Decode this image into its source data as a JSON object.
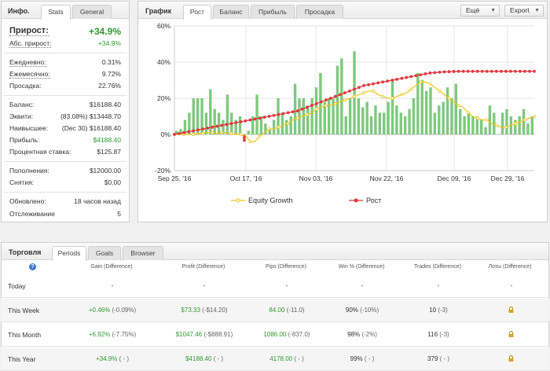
{
  "info": {
    "title": "Инфо.",
    "tabs": [
      "Stats",
      "General"
    ],
    "gain": {
      "label": "Прирост:",
      "value": "+34.9%"
    },
    "abs_gain": {
      "label": "Абс. прирост:",
      "value": "+34.9%"
    },
    "daily": {
      "label": "Ежедневно:",
      "value": "0.31%"
    },
    "monthly": {
      "label": "Ежемесячно:",
      "value": "9.72%"
    },
    "drawdown": {
      "label": "Просадка:",
      "value": "22.76%"
    },
    "balance": {
      "label": "Баланс:",
      "value": "$16188.40"
    },
    "equity": {
      "label": "Эквити:",
      "value": "(83.08%) $13448.70"
    },
    "highest": {
      "label": "Наивысшее:",
      "value": "(Dec 30) $16188.40"
    },
    "profit": {
      "label": "Прибыль:",
      "value": "$4188.40"
    },
    "interest": {
      "label": "Процентная ставка:",
      "value": "$125.87"
    },
    "deposits": {
      "label": "Пополнения:",
      "value": "$12000.00"
    },
    "withdrawals": {
      "label": "Снятия:",
      "value": "$0.00"
    },
    "updated": {
      "label": "Обновлено:",
      "value": "18 часов назад"
    },
    "tracking": {
      "label": "Отслеживание",
      "value": "5"
    }
  },
  "chart_panel": {
    "title": "График",
    "tabs": [
      "Рост",
      "Баланс",
      "Прибыль",
      "Просадка"
    ],
    "more_label": "Ещё",
    "export_label": "Export"
  },
  "chart_data": {
    "type": "line",
    "x_ticks": [
      "Sep 25, '16",
      "Oct 17, '16",
      "Nov 03, '16",
      "Nov 22, '16",
      "Dec 09, '16",
      "Dec 29, '16"
    ],
    "y_ticks": [
      "60%",
      "40%",
      "20%",
      "0%",
      "-20%"
    ],
    "ylim": [
      -20,
      60
    ],
    "grid": true,
    "legend_position": "bottom",
    "series": [
      {
        "name": "Equity Growth",
        "color": "#f0c419",
        "values": [
          0,
          0,
          0,
          0,
          0,
          0.5,
          0.5,
          1,
          1,
          0.5,
          1,
          1,
          0.5,
          0,
          0,
          -0.5,
          -4,
          -4,
          -1,
          1,
          3,
          3,
          4,
          5,
          6,
          8,
          9,
          10,
          11,
          12,
          14,
          15,
          16,
          16,
          17,
          18,
          19,
          20,
          21,
          22,
          23,
          24,
          24,
          22,
          21,
          20,
          20,
          21,
          22,
          23,
          25,
          27,
          29,
          29,
          28,
          26,
          24,
          22,
          20,
          18,
          16,
          15,
          12,
          10,
          9,
          8,
          8,
          6,
          5,
          4,
          4,
          5,
          6,
          7,
          8,
          9,
          10
        ]
      },
      {
        "name": "Рост",
        "color": "#e0393e",
        "values": [
          0,
          0.5,
          1,
          1.5,
          2,
          2.5,
          3,
          3.5,
          4,
          4.5,
          5,
          5.5,
          6,
          6.5,
          7,
          7.5,
          8,
          8.5,
          9,
          9.5,
          10,
          10.5,
          11,
          11.5,
          12,
          12.5,
          13,
          14,
          15,
          16,
          17,
          18,
          19,
          20,
          21,
          22,
          23,
          24,
          25,
          26,
          27,
          27.5,
          28,
          28.5,
          29,
          29.5,
          30,
          30.5,
          31,
          31.5,
          32,
          32.5,
          33,
          33.5,
          34,
          34.2,
          34.4,
          34.6,
          34.7,
          34.8,
          34.9,
          34.9,
          34.9,
          34.9,
          34.9,
          34.9,
          34.9,
          34.9,
          34.9,
          34.9,
          34.9,
          34.9,
          34.9,
          34.9,
          34.9,
          34.9,
          34.9
        ]
      },
      {
        "name": "bars",
        "color": "#7dc97d",
        "values": [
          2,
          3,
          8,
          12,
          20,
          20,
          20,
          12,
          25,
          14,
          12,
          8,
          22,
          12,
          8,
          10,
          -4,
          2,
          10,
          22,
          10,
          6,
          3,
          8,
          20,
          12,
          8,
          10,
          28,
          20,
          20,
          16,
          20,
          26,
          34,
          18,
          20,
          20,
          38,
          42,
          10,
          20,
          46,
          20,
          15,
          18,
          10,
          16,
          12,
          12,
          18,
          30,
          16,
          12,
          10,
          14,
          20,
          34,
          30,
          24,
          26,
          12,
          16,
          18,
          26,
          20,
          28,
          14,
          10,
          12,
          10,
          10,
          8,
          4,
          16,
          12,
          0,
          12,
          14,
          10,
          8,
          10,
          14,
          6,
          10
        ]
      }
    ]
  },
  "trading": {
    "title": "Торговля",
    "tabs": [
      "Periods",
      "Goals",
      "Browser"
    ],
    "help_icon": "?",
    "headers": [
      "Gain (Difference)",
      "Profit (Difference)",
      "Pips (Difference)",
      "Win % (Difference)",
      "Trades (Difference)",
      "Лоты (Difference)"
    ],
    "rows": [
      {
        "name": "Today",
        "gain": "-",
        "gain_d": "",
        "profit": "-",
        "profit_d": "",
        "pips": "-",
        "pips_d": "",
        "win": "-",
        "win_d": "",
        "trades": "-",
        "trades_d": "",
        "lots": "-"
      },
      {
        "name": "This Week",
        "gain": "+0.46%",
        "gain_d": " (-0.09%)",
        "profit": "$73.33",
        "profit_d": " (-$14.20)",
        "pips": "84.00",
        "pips_d": " (-11.0)",
        "win": "90%",
        "win_d": " (-10%)",
        "trades": "10",
        "trades_d": " (-3)",
        "lots": ""
      },
      {
        "name": "This Month",
        "gain": "+6.92%",
        "gain_d": " (-7.75%)",
        "profit": "$1047.46",
        "profit_d": " (-$888.91)",
        "pips": "1086.00",
        "pips_d": " (-837.0)",
        "win": "98%",
        "win_d": " (-2%)",
        "trades": "116",
        "trades_d": " (-3)",
        "lots": ""
      },
      {
        "name": "This Year",
        "gain": "+34.9%",
        "gain_d": " ( - )",
        "profit": "$4188.40",
        "profit_d": " ( - )",
        "pips": "4178.00",
        "pips_d": " ( - )",
        "win": "99%",
        "win_d": " ( - )",
        "trades": "379",
        "trades_d": " ( - )",
        "lots": ""
      }
    ]
  }
}
